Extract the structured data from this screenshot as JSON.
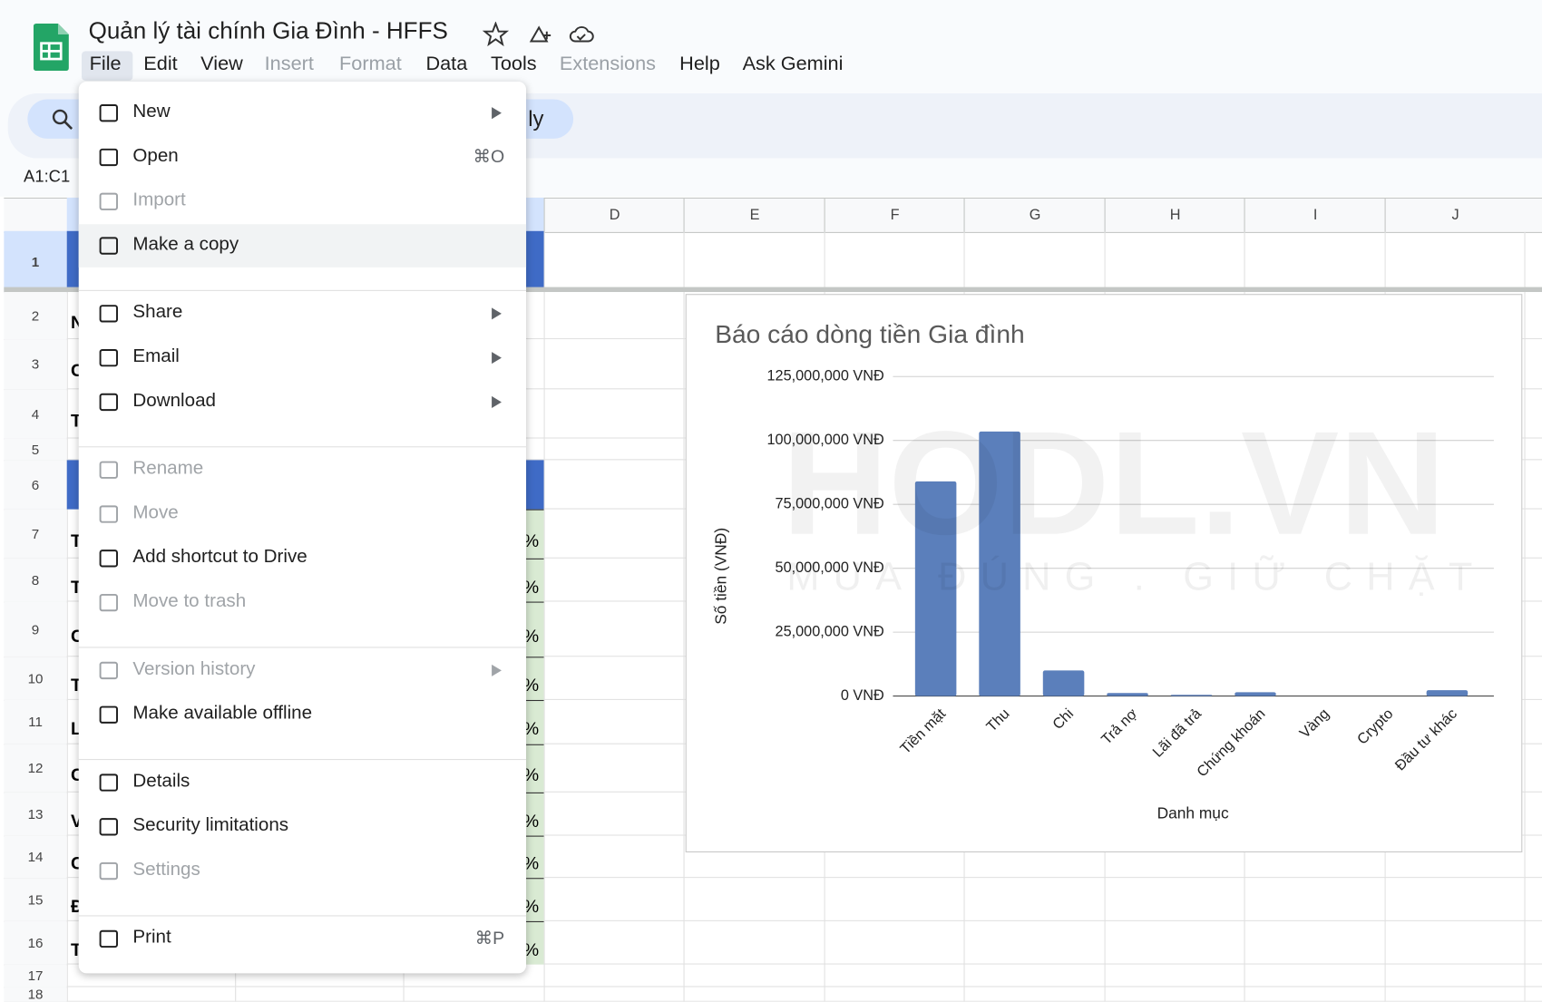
{
  "doc_title": "Quản lý tài chính Gia Đình - HFFS",
  "menu": [
    {
      "label": "File"
    },
    {
      "label": "Edit"
    },
    {
      "label": "View"
    },
    {
      "label": "Insert",
      "disabled": true
    },
    {
      "label": "Format",
      "disabled": true
    },
    {
      "label": "Data"
    },
    {
      "label": "Tools"
    },
    {
      "label": "Extensions",
      "disabled": true
    },
    {
      "label": "Help"
    },
    {
      "label": "Ask Gemini"
    }
  ],
  "search_fragment": "ly",
  "name_box": "A1:C1",
  "columns": [
    "D",
    "E",
    "F",
    "G",
    "H",
    "I",
    "J"
  ],
  "rows": [
    1,
    2,
    3,
    4,
    5,
    6,
    7,
    8,
    9,
    10,
    11,
    12,
    13,
    14,
    15,
    16,
    17,
    18
  ],
  "cell_fragments": [
    {
      "row": 2,
      "text": "N"
    },
    {
      "row": 3,
      "text": "C"
    },
    {
      "row": 4,
      "text": "T"
    },
    {
      "row": 7,
      "text": "T",
      "pct": "%"
    },
    {
      "row": 8,
      "text": "T",
      "pct": "%"
    },
    {
      "row": 9,
      "text": "C",
      "pct": "%"
    },
    {
      "row": 10,
      "text": "T",
      "pct": "%"
    },
    {
      "row": 11,
      "text": "L",
      "pct": "%"
    },
    {
      "row": 12,
      "text": "C",
      "pct": "%"
    },
    {
      "row": 13,
      "text": "V",
      "pct": "%"
    },
    {
      "row": 14,
      "text": "C",
      "pct": "%"
    },
    {
      "row": 15,
      "text": "Đ",
      "pct": "%"
    },
    {
      "row": 16,
      "text": "T",
      "pct": "%"
    }
  ],
  "file_menu": [
    [
      {
        "label": "New",
        "submenu": true
      },
      {
        "label": "Open",
        "shortcut": "⌘O"
      },
      {
        "label": "Import",
        "disabled": true
      },
      {
        "label": "Make a copy",
        "highlighted": true
      }
    ],
    [
      {
        "label": "Share",
        "submenu": true
      },
      {
        "label": "Email",
        "submenu": true
      },
      {
        "label": "Download",
        "submenu": true
      }
    ],
    [
      {
        "label": "Rename",
        "disabled": true
      },
      {
        "label": "Move",
        "disabled": true
      },
      {
        "label": "Add shortcut to Drive"
      },
      {
        "label": "Move to trash",
        "disabled": true
      }
    ],
    [
      {
        "label": "Version history",
        "disabled": true,
        "submenu": true
      },
      {
        "label": "Make available offline"
      }
    ],
    [
      {
        "label": "Details"
      },
      {
        "label": "Security limitations"
      },
      {
        "label": "Settings",
        "disabled": true
      }
    ],
    [
      {
        "label": "Print",
        "shortcut": "⌘P"
      }
    ]
  ],
  "watermark": {
    "brand": "HODL.VN",
    "slogan": "MUA ĐÚNG . GIỮ CHẶT"
  },
  "chart_data": {
    "type": "bar",
    "title": "Báo cáo dòng tiền Gia đình",
    "x_label": "Danh mục",
    "y_label": "Số tiền (VNĐ)",
    "categories": [
      "Tiền mặt",
      "Thu",
      "Chi",
      "Trả nợ",
      "Lãi đã trả",
      "Chứng khoán",
      "Vàng",
      "Crypto",
      "Đầu tư khác"
    ],
    "values": [
      84000000,
      103500000,
      10000000,
      1200000,
      500000,
      1500000,
      0,
      0,
      2300000
    ],
    "color": "#5b7fbb",
    "ylim": [
      0,
      125000000
    ],
    "yticks": [
      {
        "value": 0,
        "label": "0 VNĐ"
      },
      {
        "value": 25000000,
        "label": "25,000,000 VNĐ"
      },
      {
        "value": 50000000,
        "label": "50,000,000 VNĐ"
      },
      {
        "value": 75000000,
        "label": "75,000,000 VNĐ"
      },
      {
        "value": 100000000,
        "label": "100,000,000 VNĐ"
      },
      {
        "value": 125000000,
        "label": "125,000,000 VNĐ"
      }
    ],
    "grid": true
  }
}
